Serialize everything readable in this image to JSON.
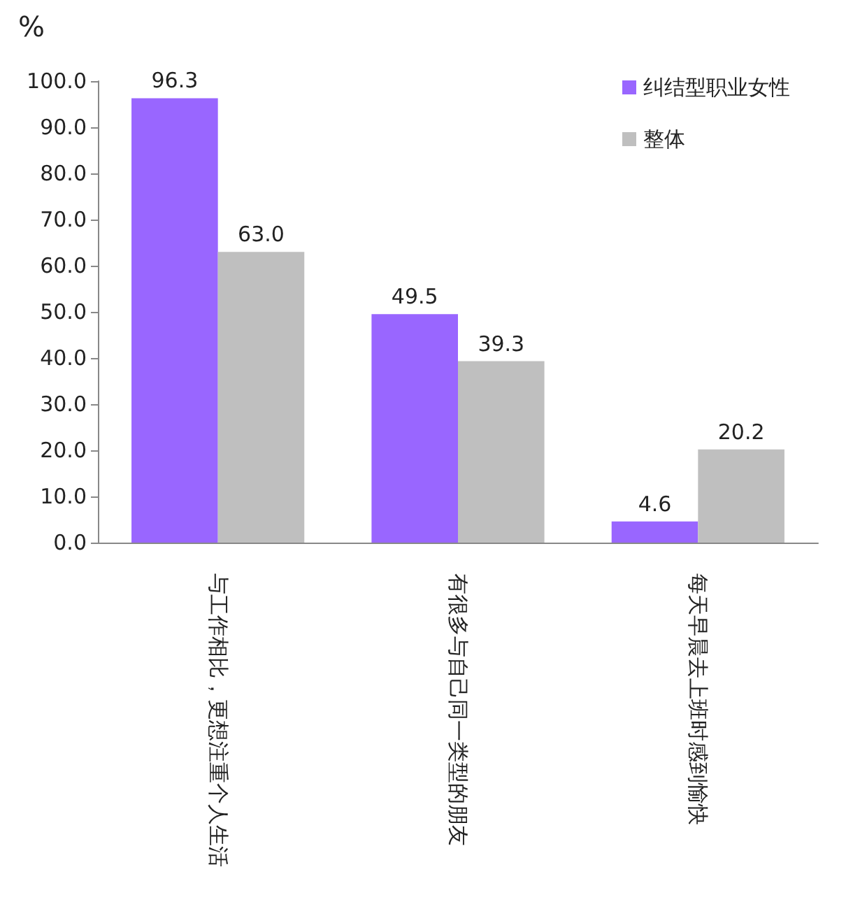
{
  "chart_data": {
    "type": "bar",
    "ylabel": "%",
    "categories": [
      "与工作相比，更想注重个人生活",
      "有很多与自己同一类型的朋友",
      "每天早晨去上班时感到愉快"
    ],
    "series": [
      {
        "name": "纠结型职业女性",
        "color": "#9966ff",
        "values": [
          96.3,
          49.5,
          4.6
        ]
      },
      {
        "name": "整体",
        "color": "#bfbfbf",
        "values": [
          63.0,
          39.3,
          20.2
        ]
      }
    ],
    "ylim": [
      0,
      100
    ],
    "yticks": [
      {
        "value": 0,
        "label": "0.0"
      },
      {
        "value": 10,
        "label": "10.0"
      },
      {
        "value": 20,
        "label": "20.0"
      },
      {
        "value": 30,
        "label": "30.0"
      },
      {
        "value": 40,
        "label": "40.0"
      },
      {
        "value": 50,
        "label": "50.0"
      },
      {
        "value": 60,
        "label": "60.0"
      },
      {
        "value": 70,
        "label": "70.0"
      },
      {
        "value": 80,
        "label": "80.0"
      },
      {
        "value": 90,
        "label": "90.0"
      },
      {
        "value": 100,
        "label": "100.0"
      }
    ],
    "value_labels": [
      [
        "96.3",
        "49.5",
        "4.6"
      ],
      [
        "63.0",
        "39.3",
        "20.2"
      ]
    ],
    "grid": false,
    "legend": "top right"
  }
}
